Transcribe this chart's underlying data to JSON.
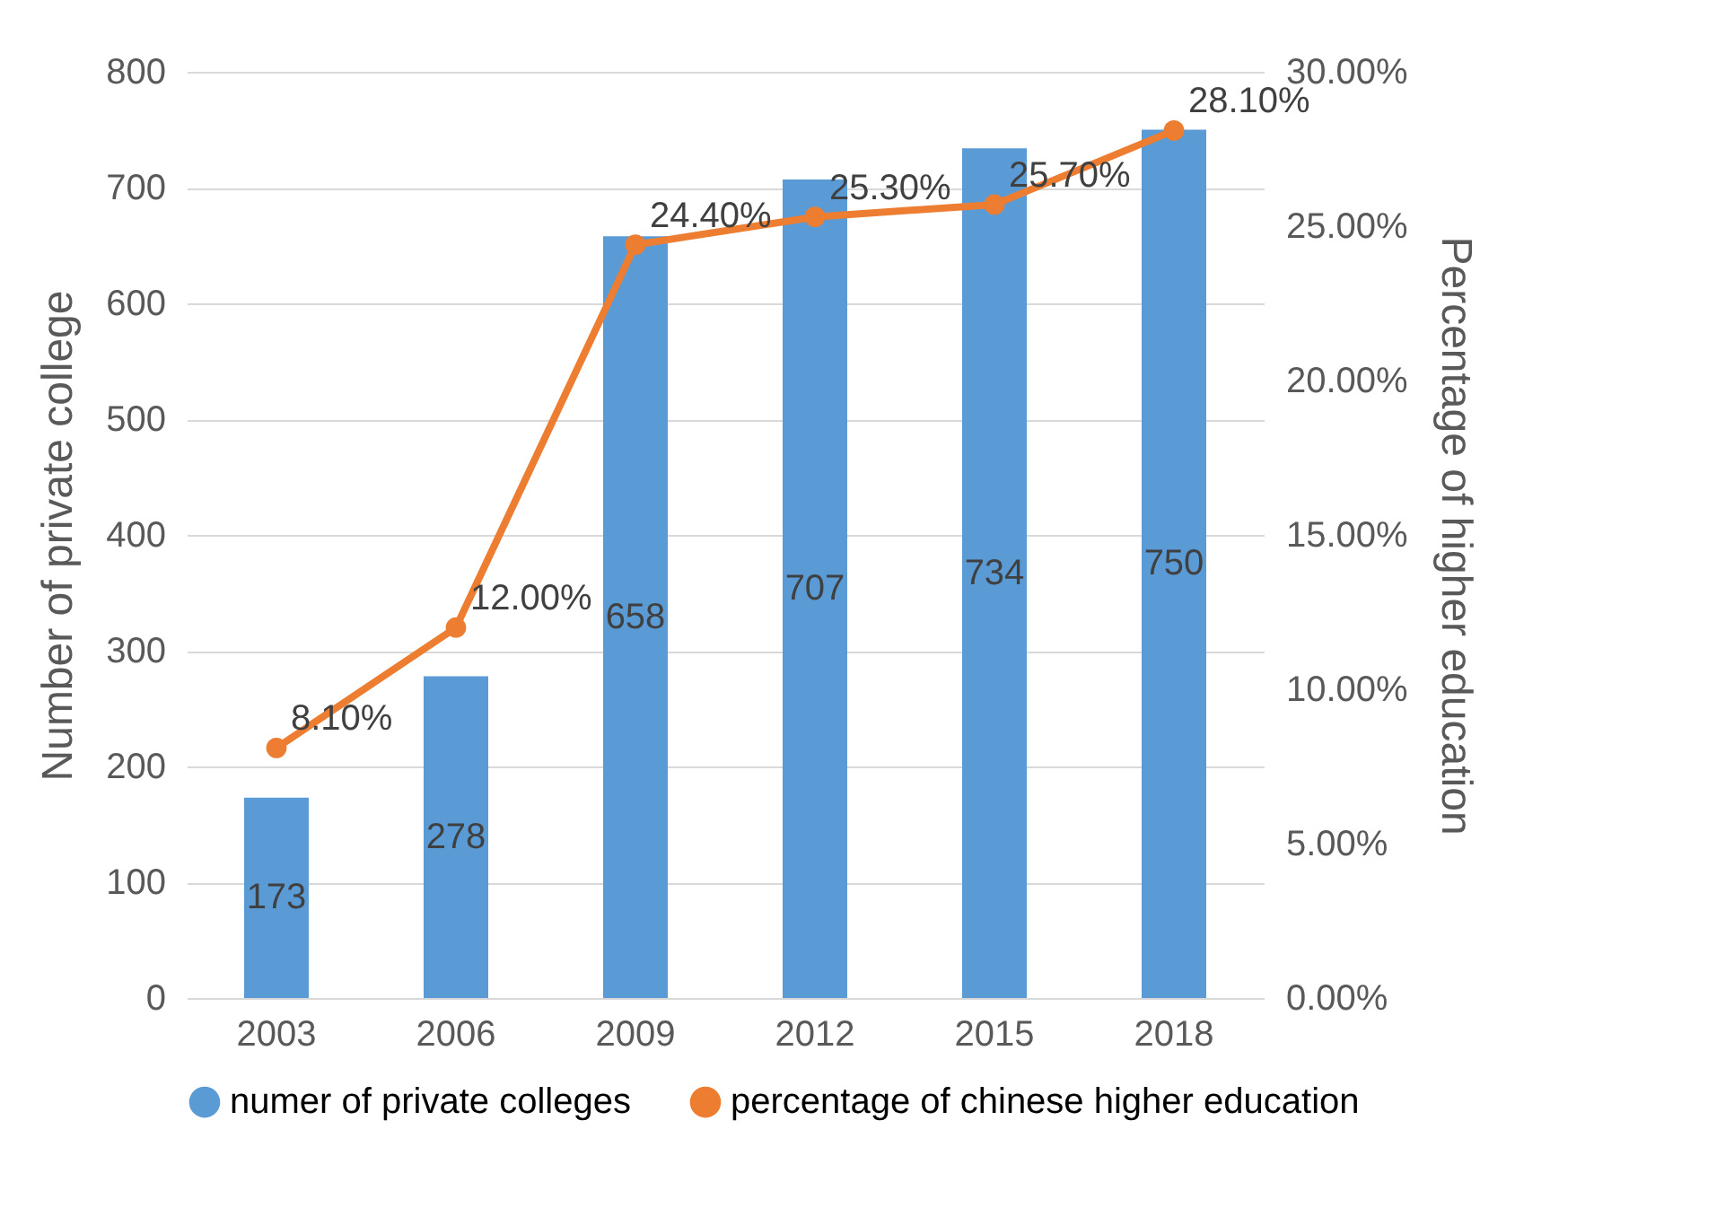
{
  "chart_data": {
    "type": "bar",
    "categories": [
      "2003",
      "2006",
      "2009",
      "2012",
      "2015",
      "2018"
    ],
    "ylabel": "Number of private college",
    "y2label": "Percentage of higher education",
    "ylim": [
      0,
      800
    ],
    "yticks": [
      0,
      100,
      200,
      300,
      400,
      500,
      600,
      700,
      800
    ],
    "y2lim": [
      0,
      30
    ],
    "y2ticks": [
      {
        "value": 0,
        "label": "0.00%"
      },
      {
        "value": 5,
        "label": "5.00%"
      },
      {
        "value": 10,
        "label": "10.00%"
      },
      {
        "value": 15,
        "label": "15.00%"
      },
      {
        "value": 20,
        "label": "20.00%"
      },
      {
        "value": 25,
        "label": "25.00%"
      },
      {
        "value": 30,
        "label": "30.00%"
      }
    ],
    "grid": "y",
    "legend": "bottom",
    "marker": "circle",
    "series": [
      {
        "name": "numer of private colleges",
        "color": "#5b9bd5",
        "values": [
          173,
          278,
          658,
          707,
          734,
          750
        ],
        "value_labels": [
          "173",
          "278",
          "658",
          "707",
          "734",
          "750"
        ]
      },
      {
        "name": "percentage of chinese higher education",
        "type": "line",
        "axis": "y2",
        "color": "#ed7d31",
        "values": [
          8.1,
          12.0,
          24.4,
          25.3,
          25.7,
          28.1
        ],
        "value_labels": [
          "8.10%",
          "12.00%",
          "24.40%",
          "25.30%",
          "25.70%",
          "28.10%"
        ]
      }
    ]
  }
}
